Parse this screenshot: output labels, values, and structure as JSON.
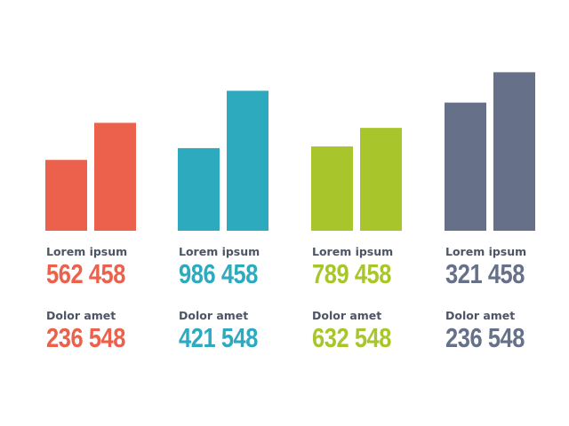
{
  "chart_data": {
    "type": "bar",
    "ylim": [
      0,
      100
    ],
    "groups": [
      {
        "color": "#ec614b",
        "values": [
          42,
          64
        ],
        "metrics": [
          {
            "label": "Lorem ipsum",
            "value": "562 458"
          },
          {
            "label": "Dolor amet",
            "value": "236 548"
          }
        ]
      },
      {
        "color": "#2eaabf",
        "values": [
          49,
          83
        ],
        "metrics": [
          {
            "label": "Lorem ipsum",
            "value": "986 458"
          },
          {
            "label": "Dolor amet",
            "value": "421 548"
          }
        ]
      },
      {
        "color": "#a8c62b",
        "values": [
          50,
          61
        ],
        "metrics": [
          {
            "label": "Lorem ipsum",
            "value": "789 458"
          },
          {
            "label": "Dolor amet",
            "value": "632 548"
          }
        ]
      },
      {
        "color": "#667189",
        "values": [
          76,
          94
        ],
        "metrics": [
          {
            "label": "Lorem ipsum",
            "value": "321 458"
          },
          {
            "label": "Dolor amet",
            "value": "236 548"
          }
        ]
      }
    ]
  }
}
